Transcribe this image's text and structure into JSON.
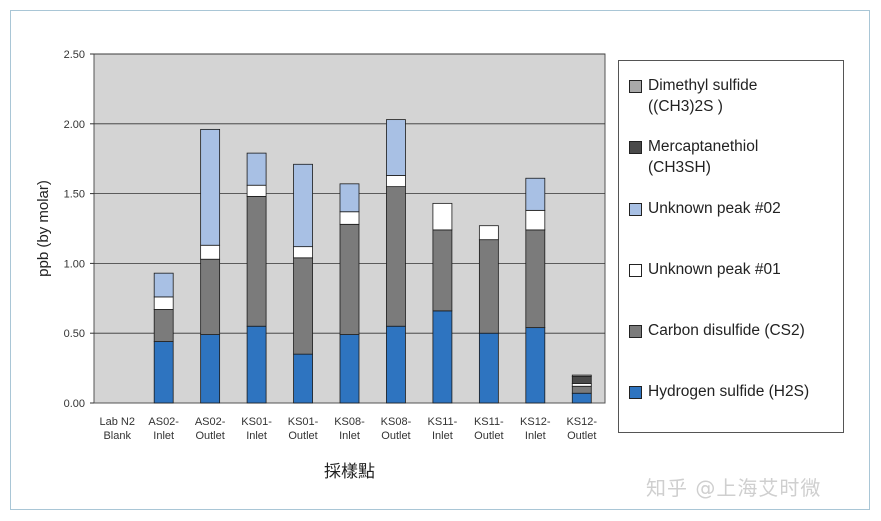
{
  "chart_data": {
    "type": "bar",
    "stacked": true,
    "categories": [
      [
        "Lab N2",
        "Blank"
      ],
      [
        "AS02-",
        "Inlet"
      ],
      [
        "AS02-",
        "Outlet"
      ],
      [
        "KS01-",
        "Inlet"
      ],
      [
        "KS01-",
        "Outlet"
      ],
      [
        "KS08-",
        "Inlet"
      ],
      [
        "KS08-",
        "Outlet"
      ],
      [
        "KS11-",
        "Inlet"
      ],
      [
        "KS11-",
        "Outlet"
      ],
      [
        "KS12-",
        "Inlet"
      ],
      [
        "KS12-",
        "Outlet"
      ]
    ],
    "series": [
      {
        "name": "Hydrogen sulfide (H2S)",
        "color": "#2e74c0",
        "values": [
          0,
          0.44,
          0.49,
          0.55,
          0.35,
          0.49,
          0.55,
          0.66,
          0.5,
          0.54,
          0.07
        ]
      },
      {
        "name": "Carbon disulfide (CS2)",
        "color": "#7b7b7b",
        "values": [
          0,
          0.23,
          0.54,
          0.93,
          0.69,
          0.79,
          1.0,
          0.58,
          0.67,
          0.7,
          0.05
        ]
      },
      {
        "name": "Unknown peak #01",
        "color": "#ffffff",
        "values": [
          0,
          0.09,
          0.1,
          0.08,
          0.08,
          0.09,
          0.08,
          0.19,
          0.1,
          0.14,
          0.02
        ]
      },
      {
        "name": "Unknown peak #02",
        "color": "#a8c0e4",
        "values": [
          0,
          0.17,
          0.83,
          0.23,
          0.59,
          0.2,
          0.4,
          0,
          0,
          0.23,
          0
        ]
      },
      {
        "name": "Mercaptanethiol (CH3SH)",
        "color": "#4a4a4a",
        "values": [
          0,
          0,
          0,
          0,
          0,
          0,
          0,
          0,
          0,
          0,
          0.05
        ]
      },
      {
        "name": "Dimethyl sulfide ((CH3)2S )",
        "color": "#a9a9a9",
        "values": [
          0,
          0,
          0,
          0,
          0,
          0,
          0,
          0,
          0,
          0,
          0.01
        ]
      }
    ],
    "yticks": [
      "0.00",
      "0.50",
      "1.00",
      "1.50",
      "2.00",
      "2.50"
    ],
    "ylim": [
      0,
      2.5
    ],
    "ylabel": "ppb (by molar)",
    "xlabel": "採樣點",
    "grid": true,
    "plot_bg": "#d4d4d4",
    "legend_placement": "right"
  },
  "legend": [
    {
      "line1": "Dimethyl sulfide",
      "line2": "((CH3)2S )",
      "color": "#a9a9a9"
    },
    {
      "line1": "Mercaptanethiol",
      "line2": "(CH3SH)",
      "color": "#4a4a4a"
    },
    {
      "line1": "Unknown peak #02",
      "line2": "",
      "color": "#a8c0e4"
    },
    {
      "line1": "Unknown peak #01",
      "line2": "",
      "color": "#ffffff"
    },
    {
      "line1": "Carbon disulfide (CS2)",
      "line2": "",
      "color": "#7b7b7b"
    },
    {
      "line1": "Hydrogen sulfide (H2S)",
      "line2": "",
      "color": "#2e74c0"
    }
  ],
  "watermark": "知乎 @上海艾时微"
}
